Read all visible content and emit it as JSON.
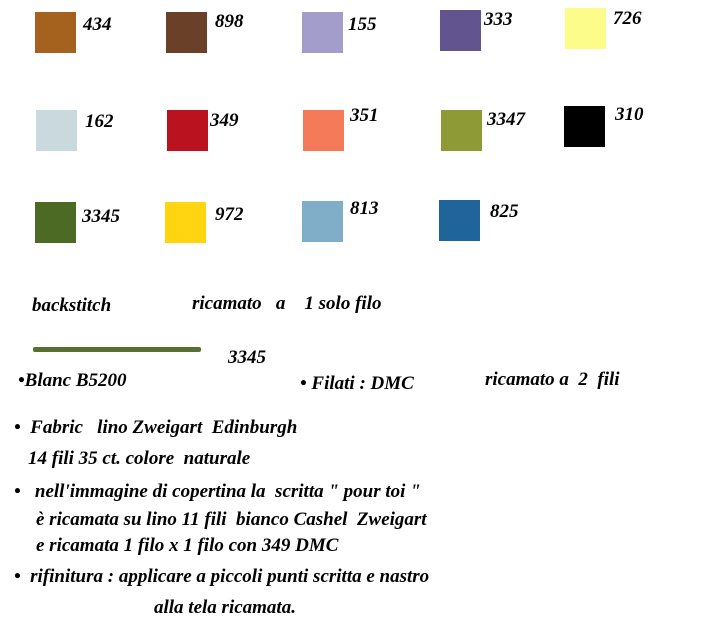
{
  "swatches": [
    {
      "code": "434",
      "color": "#a5621f"
    },
    {
      "code": "898",
      "color": "#6b4028"
    },
    {
      "code": "155",
      "color": "#a39dcb"
    },
    {
      "code": "333",
      "color": "#62548f"
    },
    {
      "code": "726",
      "color": "#fcfc8a"
    },
    {
      "code": "162",
      "color": "#c9d9dd"
    },
    {
      "code": "349",
      "color": "#bb1220"
    },
    {
      "code": "351",
      "color": "#f47a5a"
    },
    {
      "code": "3347",
      "color": "#8e9a35"
    },
    {
      "code": "310",
      "color": "#000000"
    },
    {
      "code": "3345",
      "color": "#4c6a24"
    },
    {
      "code": "972",
      "color": "#fed510"
    },
    {
      "code": "813",
      "color": "#80aec9"
    },
    {
      "code": "825",
      "color": "#1f649a"
    }
  ],
  "backstitch": {
    "label": "backstitch",
    "note": "ricamato   a    1 solo filo",
    "line_color": "#56702f",
    "line_code": "3345"
  },
  "text": {
    "blanc": "•Blanc B5200",
    "filati": "• Filati : DMC",
    "ricamato2": "ricamato a  2  fili",
    "fabric1": "•  Fabric   lino Zweigart  Edinburgh",
    "fabric2": "14 fili 35 ct. colore  naturale",
    "cover1": "•   nell'immagine di copertina la  scritta \" pour toi \"",
    "cover2": "è ricamata su lino 11 fili  bianco Cashel  Zweigart",
    "cover3": "e ricamata 1 filo x 1 filo con 349 DMC",
    "finish1": "•  rifinitura : applicare a piccoli punti scritta e nastro",
    "finish2": "alla tela ricamata."
  }
}
